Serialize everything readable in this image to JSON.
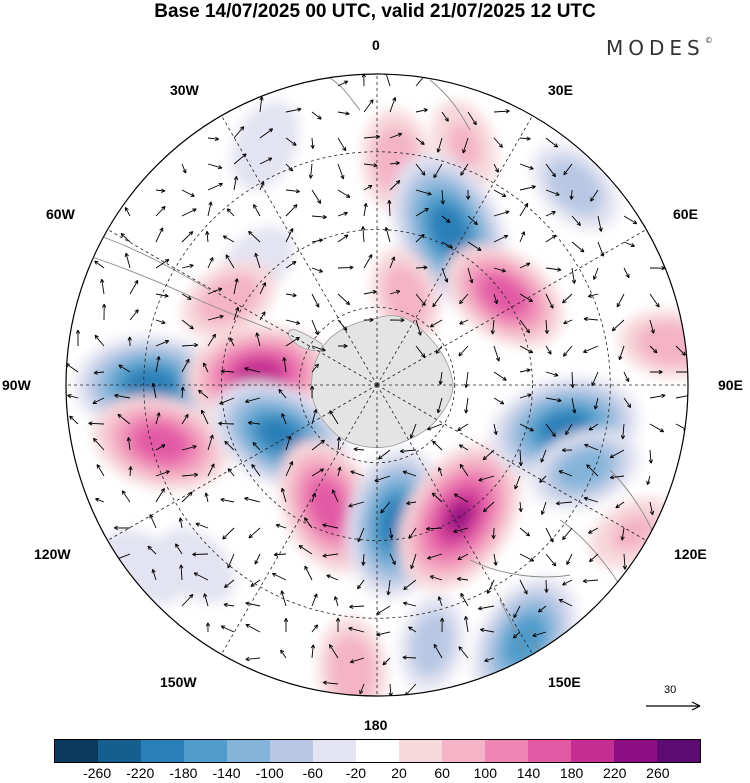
{
  "title": "Base 14/07/2025 00 UTC, valid 21/07/2025 12 UTC",
  "logo": {
    "text": "MODES",
    "mark": "©"
  },
  "longitude_labels": {
    "lon_0": "0",
    "lon_30e": "30E",
    "lon_60e": "60E",
    "lon_90e": "90E",
    "lon_120e": "120E",
    "lon_150e": "150E",
    "lon_180": "180",
    "lon_150w": "150W",
    "lon_120w": "120W",
    "lon_90w": "90W",
    "lon_60w": "60W",
    "lon_30w": "30W"
  },
  "reference_vector": {
    "label": "30"
  },
  "colorbar": {
    "colors": [
      "#0b3a5e",
      "#145f8e",
      "#2b7fb8",
      "#4f9cca",
      "#84b4d9",
      "#b8c8e4",
      "#e3e3f1",
      "#ffffff",
      "#f7d8dc",
      "#f4b3c6",
      "#ee86b4",
      "#e25aa5",
      "#c42d91",
      "#8c0e82",
      "#5c0b72"
    ],
    "ticks": [
      "-260",
      "-220",
      "-180",
      "-140",
      "-100",
      "-60",
      "-20",
      "20",
      "60",
      "100",
      "140",
      "180",
      "220",
      "260"
    ]
  },
  "anomaly_field": [
    {
      "lon": 5,
      "r": 0.72,
      "v": 90
    },
    {
      "lon": 20,
      "r": 0.82,
      "v": 60
    },
    {
      "lon": -25,
      "r": 0.85,
      "v": -60
    },
    {
      "lon": 25,
      "r": 0.55,
      "v": -220
    },
    {
      "lon": 18,
      "r": 0.3,
      "v": 70
    },
    {
      "lon": -45,
      "r": 0.55,
      "v": -50
    },
    {
      "lon": -60,
      "r": 0.55,
      "v": 80
    },
    {
      "lon": 55,
      "r": 0.5,
      "v": 150
    },
    {
      "lon": 45,
      "r": 0.9,
      "v": -80
    },
    {
      "lon": -90,
      "r": 0.73,
      "v": -200
    },
    {
      "lon": -85,
      "r": 0.38,
      "v": 190
    },
    {
      "lon": -105,
      "r": 0.72,
      "v": 170
    },
    {
      "lon": -118,
      "r": 0.35,
      "v": -190
    },
    {
      "lon": -158,
      "r": 0.42,
      "v": 170
    },
    {
      "lon": 172,
      "r": 0.45,
      "v": -200
    },
    {
      "lon": 148,
      "r": 0.5,
      "v": 220
    },
    {
      "lon": 103,
      "r": 0.62,
      "v": -200
    },
    {
      "lon": 112,
      "r": 0.72,
      "v": -110
    },
    {
      "lon": 168,
      "r": 0.85,
      "v": -70
    },
    {
      "lon": -175,
      "r": 0.92,
      "v": 90
    },
    {
      "lon": -135,
      "r": 0.82,
      "v": -50
    },
    {
      "lon": -128,
      "r": 0.95,
      "v": -60
    },
    {
      "lon": 150,
      "r": 0.95,
      "v": -170
    },
    {
      "lon": 120,
      "r": 0.95,
      "v": 60
    },
    {
      "lon": 82,
      "r": 0.95,
      "v": 80
    }
  ]
}
